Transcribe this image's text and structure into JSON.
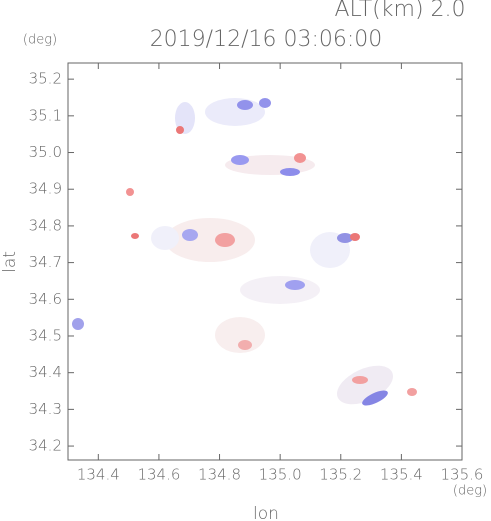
{
  "chart_data": {
    "type": "map",
    "title": "2019/12/16 03:06:00",
    "subtitle": "ALT(km) 2.0",
    "x_label": "lon",
    "y_label": "lat",
    "x_unit": "(deg)",
    "y_unit": "(deg)",
    "xlim": [
      134.3,
      135.6
    ],
    "ylim": [
      34.162,
      35.244
    ],
    "xticks": [
      134.4,
      134.6,
      134.8,
      {
        "value": 135,
        "label": "135.0"
      },
      135.2,
      135.4,
      135.6
    ],
    "yticks": [
      34.2,
      34.3,
      34.4,
      34.5,
      34.6,
      34.7,
      34.8,
      34.9,
      {
        "value": 35,
        "label": "35.0"
      },
      35.1,
      35.2
    ]
  }
}
